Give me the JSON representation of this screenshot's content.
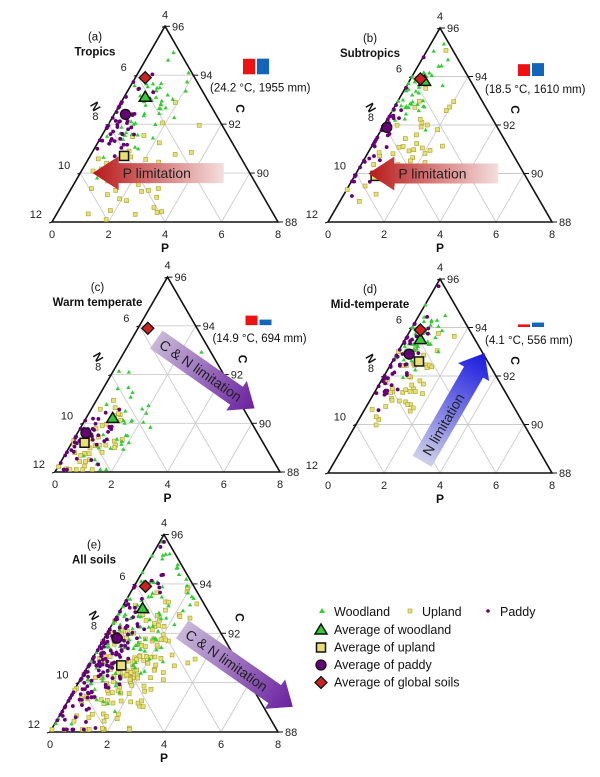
{
  "figure": {
    "legend": {
      "woodland": "Woodland",
      "upland": "Upland",
      "paddy": "Paddy",
      "avg_woodland": "Average of woodland",
      "avg_upland": "Average of upland",
      "avg_paddy": "Average of paddy",
      "avg_global": "Average of global soils"
    },
    "colors": {
      "woodland": "#33cc33",
      "upland": "#e8e070",
      "upland_edge": "#a8a030",
      "paddy": "#660077",
      "avg_global": "#cc2222",
      "temp_bar": "#ee1111",
      "precip_bar": "#1166bb",
      "grid": "#cccccc",
      "p_arrow": "#c02020",
      "cn_arrow": "#7030a0",
      "n_arrow": "#2020dd"
    }
  },
  "chart_data": [
    {
      "id": "a",
      "type": "scatter",
      "subtype": "ternary",
      "panel_label": "(a)",
      "title": "Tropics",
      "climate_text": "(24.2 °C, 1955 mm)",
      "temperature_c": 24.2,
      "precipitation_mm": 1955,
      "axes": {
        "P": {
          "label": "P",
          "ticks": [
            "0",
            "2",
            "4",
            "6",
            "8"
          ],
          "range": [
            0,
            8
          ]
        },
        "N": {
          "label": "N",
          "ticks": [
            "4",
            "6",
            "8",
            "10",
            "12"
          ],
          "range": [
            12,
            4
          ]
        },
        "C": {
          "label": "C",
          "ticks": [
            "96",
            "94",
            "92",
            "90",
            "88"
          ],
          "range": [
            96,
            88
          ]
        }
      },
      "arrow": {
        "text": "P limitation",
        "direction": "left"
      },
      "averages": {
        "global": {
          "P": 0.35,
          "N": 6.1
        },
        "woodland": {
          "P": 0.75,
          "N": 6.9
        },
        "paddy": {
          "P": 0.4,
          "N": 7.6
        },
        "upland": {
          "P": 1.2,
          "N": 9.3
        }
      },
      "clusters": {
        "woodland": {
          "count": 55,
          "P": 1.0,
          "N": 7.3,
          "sP": 0.55,
          "sN": 1.1
        },
        "upland": {
          "count": 45,
          "P": 2.2,
          "N": 10.0,
          "sP": 0.9,
          "sN": 1.1
        },
        "paddy": {
          "count": 45,
          "P": 0.45,
          "N": 7.8,
          "sP": 0.45,
          "sN": 0.8
        }
      }
    },
    {
      "id": "b",
      "type": "scatter",
      "subtype": "ternary",
      "panel_label": "(b)",
      "title": "Subtropics",
      "climate_text": "(18.5 °C, 1610 mm)",
      "temperature_c": 18.5,
      "precipitation_mm": 1610,
      "axes": {
        "P": {
          "label": "P",
          "ticks": [
            "0",
            "2",
            "4",
            "6",
            "8"
          ],
          "range": [
            0,
            8
          ]
        },
        "N": {
          "label": "N",
          "ticks": [
            "4",
            "6",
            "8",
            "10",
            "12"
          ],
          "range": [
            12,
            4
          ]
        },
        "C": {
          "label": "C",
          "ticks": [
            "96",
            "94",
            "92",
            "90",
            "88"
          ],
          "range": [
            96,
            88
          ]
        }
      },
      "arrow": {
        "text": "P limitation",
        "direction": "left"
      },
      "averages": {
        "global": {
          "P": 0.35,
          "N": 6.1
        },
        "woodland": {
          "P": 0.55,
          "N": 6.2
        },
        "paddy": {
          "P": 0.15,
          "N": 8.1
        },
        "upland": {
          "P": 0.75,
          "N": 10.1
        }
      },
      "clusters": {
        "woodland": {
          "count": 45,
          "P": 0.45,
          "N": 6.6,
          "sP": 0.3,
          "sN": 0.8
        },
        "upland": {
          "count": 40,
          "P": 1.4,
          "N": 9.1,
          "sP": 0.75,
          "sN": 1.2
        },
        "paddy": {
          "count": 40,
          "P": 0.05,
          "N": 8.6,
          "sP": 0.3,
          "sN": 1.0
        }
      }
    },
    {
      "id": "c",
      "type": "scatter",
      "subtype": "ternary",
      "panel_label": "(c)",
      "title": "Warm temperate",
      "climate_text": "(14.9 °C, 694 mm)",
      "temperature_c": 14.9,
      "precipitation_mm": 694,
      "axes": {
        "P": {
          "label": "P",
          "ticks": [
            "0",
            "2",
            "4",
            "6",
            "8"
          ],
          "range": [
            0,
            8
          ]
        },
        "N": {
          "label": "N",
          "ticks": [
            "4",
            "6",
            "8",
            "10",
            "12"
          ],
          "range": [
            12,
            4
          ]
        },
        "C": {
          "label": "C",
          "ticks": [
            "96",
            "94",
            "92",
            "90",
            "88"
          ],
          "range": [
            96,
            88
          ]
        }
      },
      "arrow": {
        "text": "C & N limitation",
        "direction": "down-right"
      },
      "averages": {
        "global": {
          "P": 0.35,
          "N": 6.1
        },
        "woodland": {
          "P": 0.95,
          "N": 9.8
        },
        "paddy": {
          "P": 0.3,
          "N": 10.4
        },
        "upland": {
          "P": 0.45,
          "N": 10.8
        }
      },
      "clusters": {
        "woodland": {
          "count": 35,
          "P": 1.4,
          "N": 9.9,
          "sP": 0.6,
          "sN": 1.1
        },
        "upland": {
          "count": 40,
          "P": 0.8,
          "N": 10.9,
          "sP": 0.5,
          "sN": 0.7
        },
        "paddy": {
          "count": 45,
          "P": 0.5,
          "N": 10.6,
          "sP": 0.55,
          "sN": 0.7
        }
      }
    },
    {
      "id": "d",
      "type": "scatter",
      "subtype": "ternary",
      "panel_label": "(d)",
      "title": "Mid-temperate",
      "climate_text": "(4.1 °C, 556 mm)",
      "temperature_c": 4.1,
      "precipitation_mm": 556,
      "axes": {
        "P": {
          "label": "P",
          "ticks": [
            "0",
            "2",
            "4",
            "6",
            "8"
          ],
          "range": [
            0,
            8
          ]
        },
        "N": {
          "label": "N",
          "ticks": [
            "4",
            "6",
            "8",
            "10",
            "12"
          ],
          "range": [
            12,
            4
          ]
        },
        "C": {
          "label": "C",
          "ticks": [
            "96",
            "94",
            "92",
            "90",
            "88"
          ],
          "range": [
            96,
            88
          ]
        }
      },
      "arrow": {
        "text": "N limitation",
        "direction": "up-right"
      },
      "averages": {
        "global": {
          "P": 0.35,
          "N": 6.1
        },
        "woodland": {
          "P": 0.55,
          "N": 6.5
        },
        "paddy": {
          "P": 0.45,
          "N": 7.1
        },
        "upland": {
          "P": 0.95,
          "N": 7.4
        }
      },
      "clusters": {
        "woodland": {
          "count": 45,
          "P": 0.6,
          "N": 6.6,
          "sP": 0.35,
          "sN": 0.6
        },
        "upland": {
          "count": 45,
          "P": 0.95,
          "N": 7.9,
          "sP": 0.5,
          "sN": 1.0
        },
        "paddy": {
          "count": 50,
          "P": 0.3,
          "N": 7.5,
          "sP": 0.35,
          "sN": 0.8
        }
      }
    },
    {
      "id": "e",
      "type": "scatter",
      "subtype": "ternary",
      "panel_label": "(e)",
      "title": "All soils",
      "climate_text": "",
      "axes": {
        "P": {
          "label": "P",
          "ticks": [
            "0",
            "2",
            "4",
            "6",
            "8"
          ],
          "range": [
            0,
            8
          ]
        },
        "N": {
          "label": "N",
          "ticks": [
            "4",
            "6",
            "8",
            "10",
            "12"
          ],
          "range": [
            12,
            4
          ]
        },
        "C": {
          "label": "C",
          "ticks": [
            "96",
            "94",
            "92",
            "90",
            "88"
          ],
          "range": [
            96,
            88
          ]
        }
      },
      "arrow": {
        "text": "C & N limitation",
        "direction": "down-right"
      },
      "averages": {
        "global": {
          "P": 0.4,
          "N": 6.1
        },
        "woodland": {
          "P": 0.75,
          "N": 7.0
        },
        "paddy": {
          "P": 0.45,
          "N": 8.2
        },
        "upland": {
          "P": 1.15,
          "N": 9.3
        }
      },
      "clusters": {
        "woodland": {
          "count": 140,
          "P": 0.8,
          "N": 7.9,
          "sP": 0.8,
          "sN": 1.6
        },
        "upland": {
          "count": 150,
          "P": 1.4,
          "N": 9.5,
          "sP": 0.8,
          "sN": 1.6
        },
        "paddy": {
          "count": 160,
          "P": 0.4,
          "N": 9.0,
          "sP": 0.45,
          "sN": 1.5
        }
      }
    }
  ]
}
